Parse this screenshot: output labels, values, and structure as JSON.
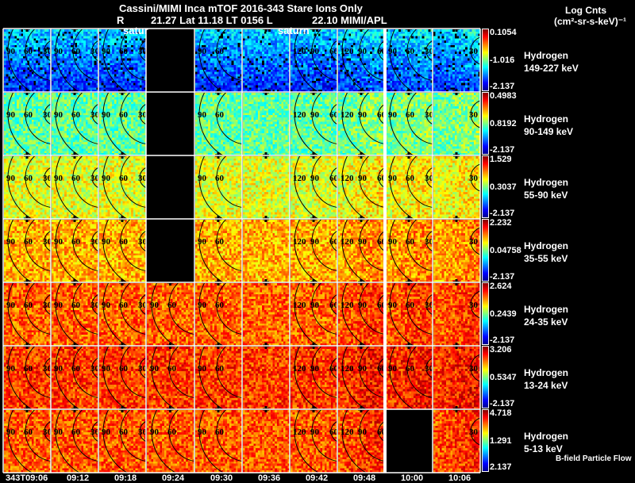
{
  "header": {
    "title": "Cassini/MIMI Inca mTOF  2016-343    Stare    Ions Only",
    "subtitle_r": "R",
    "subtitle_pos": "21.27 Lat 11.18 LT 0156 L",
    "subtitle_l": "22.10  MIMI/APL",
    "units_line1": "Log Cnts",
    "units_line2": "(cm²-sr-s-keV)⁻¹",
    "planet_labels": [
      "satur",
      "saturn"
    ]
  },
  "footer": {
    "legend_note": "B-field Particle Flow"
  },
  "chart_data": {
    "type": "heatmap",
    "title": "Cassini/MIMI Inca mTOF 2016-343 Stare Ions Only",
    "colormap": "jet",
    "x_tick_labels": [
      "343T09:06",
      "09:12",
      "09:18",
      "09:24",
      "09:30",
      "09:36",
      "09:42",
      "09:48",
      "10:00",
      "10:06"
    ],
    "rows": [
      {
        "species": "Hydrogen",
        "energy": "149-227 keV",
        "cbar_max": "0.1054",
        "cbar_mid": "-1.016",
        "cbar_min": "-2.137",
        "mean_level": 0.33,
        "missing_columns": [
          3
        ]
      },
      {
        "species": "Hydrogen",
        "energy": "90-149 keV",
        "cbar_max": "0.4983",
        "cbar_mid": "0.8192",
        "cbar_min": "-2.137",
        "mean_level": 0.47,
        "missing_columns": [
          3
        ]
      },
      {
        "species": "Hydrogen",
        "energy": "55-90 keV",
        "cbar_max": "1.529",
        "cbar_mid": "0.3037",
        "cbar_min": "-2.137",
        "mean_level": 0.6,
        "missing_columns": [
          3
        ]
      },
      {
        "species": "Hydrogen",
        "energy": "35-55 keV",
        "cbar_max": "2.232",
        "cbar_mid": "0.04758",
        "cbar_min": "-2.137",
        "mean_level": 0.7,
        "missing_columns": [
          3
        ]
      },
      {
        "species": "Hydrogen",
        "energy": "24-35 keV",
        "cbar_max": "2.624",
        "cbar_mid": "0.2439",
        "cbar_min": "-2.137",
        "mean_level": 0.78,
        "missing_columns": []
      },
      {
        "species": "Hydrogen",
        "energy": "13-24 keV",
        "cbar_max": "3.206",
        "cbar_mid": "0.5347",
        "cbar_min": "-2.137",
        "mean_level": 0.82,
        "missing_columns": []
      },
      {
        "species": "Hydrogen",
        "energy": "5-13 keV",
        "cbar_max": "4.718",
        "cbar_mid": "1.291",
        "cbar_min": "2.137",
        "mean_level": 0.79,
        "missing_columns": [
          8
        ]
      }
    ],
    "contour_labels": [
      [
        "90",
        "60",
        "30"
      ],
      [
        "90",
        "60",
        "30"
      ],
      [
        "90",
        "60",
        "30"
      ],
      [
        "90",
        "60"
      ],
      [
        "90",
        "60"
      ],
      [],
      [
        "120",
        "90",
        "60"
      ],
      [
        "120",
        "90",
        "60"
      ],
      [
        "90",
        "60",
        "30"
      ],
      [
        "30"
      ]
    ]
  }
}
